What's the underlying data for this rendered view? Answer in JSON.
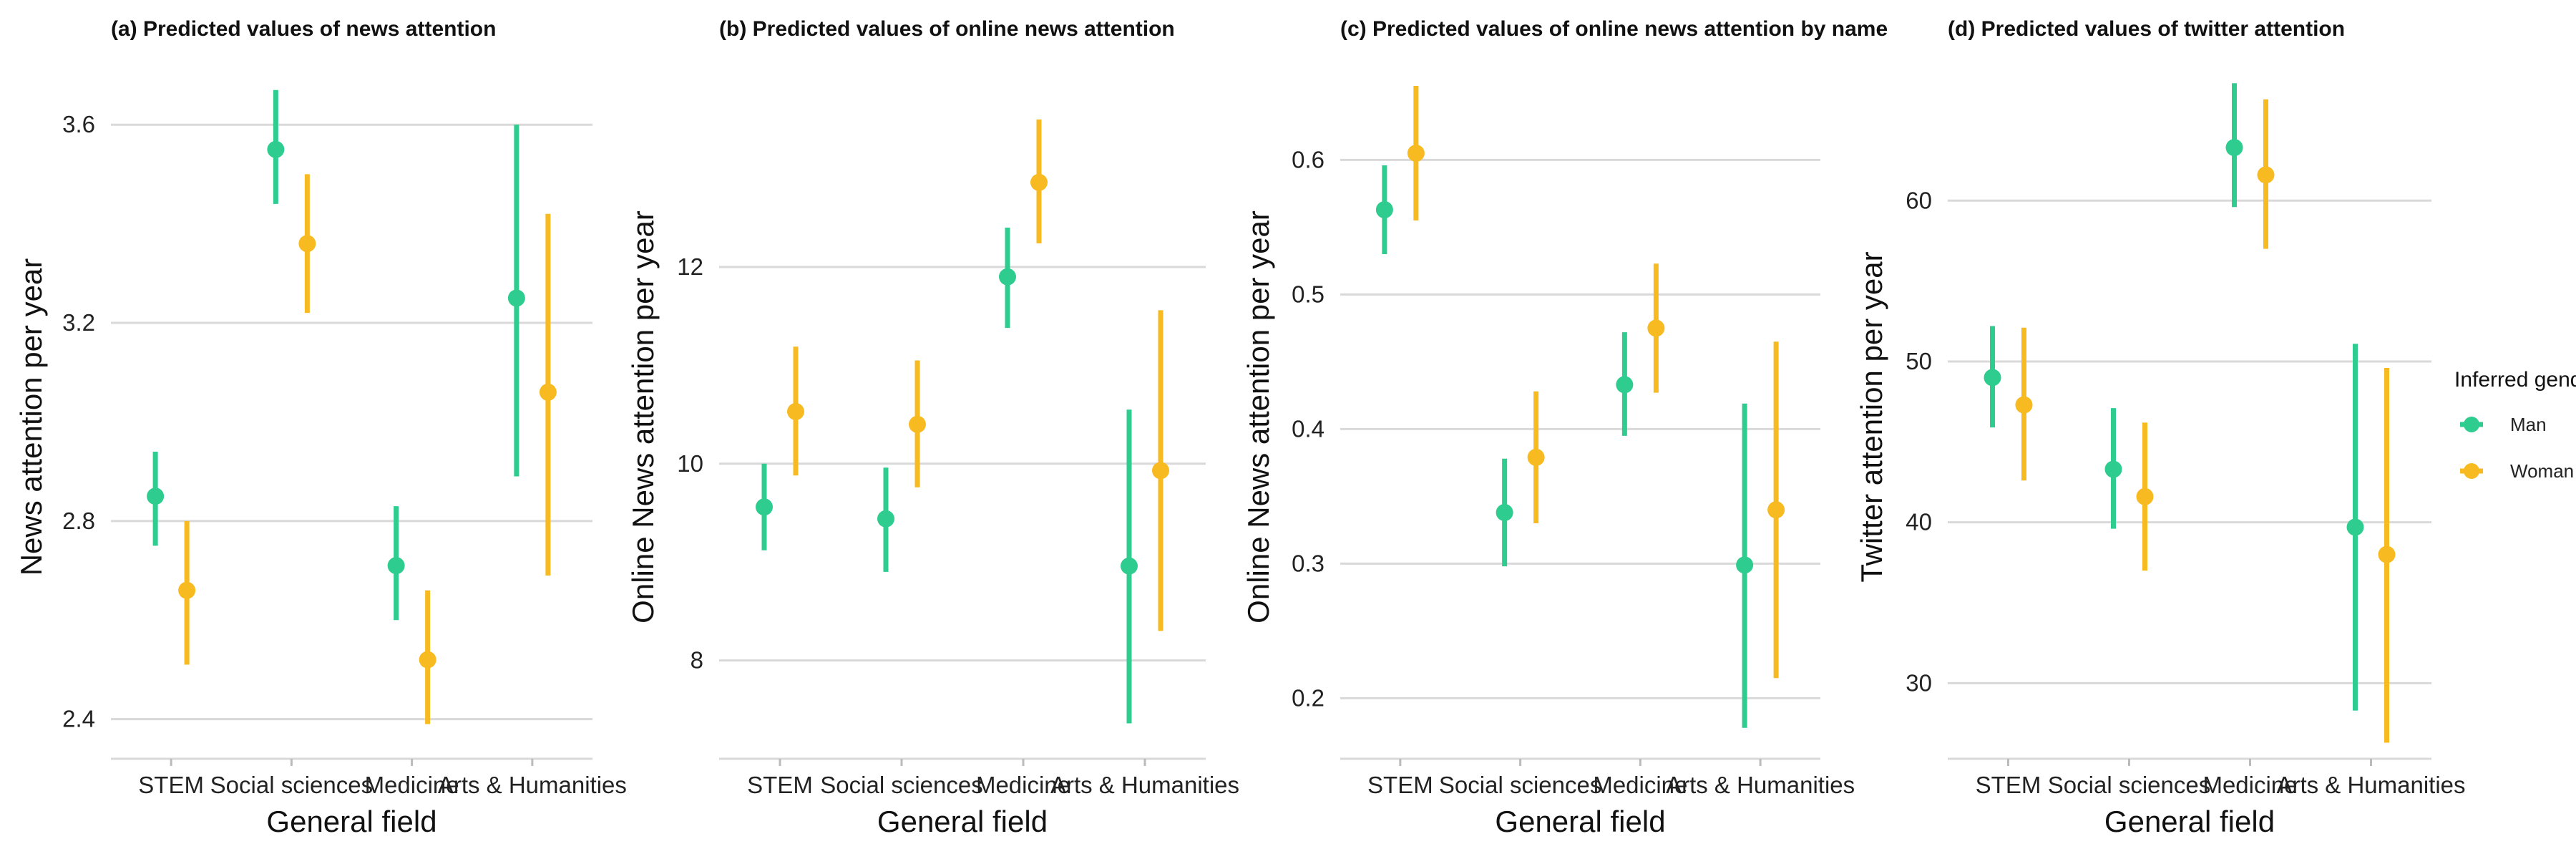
{
  "legend": {
    "title": "Inferred gender",
    "entries": [
      {
        "name": "Man",
        "color": "#2ECC8F"
      },
      {
        "name": "Woman",
        "color": "#F7BA21"
      }
    ],
    "position": "right"
  },
  "chart_data": [
    {
      "type": "point-range",
      "title": "(a) Predicted values of news attention",
      "xlabel": "General field",
      "ylabel": "News attention per year",
      "categories": [
        "STEM",
        "Social sciences",
        "Medicine",
        "Arts & Humanities"
      ],
      "ylim": [
        2.32,
        3.7
      ],
      "yticks": [
        2.4,
        2.8,
        3.2,
        3.6
      ],
      "ytick_labels": [
        "2.4",
        "2.8",
        "3.2",
        "3.6"
      ],
      "grid": true,
      "series": [
        {
          "name": "Man",
          "values": [
            2.85,
            3.55,
            2.71,
            3.25
          ],
          "lower": [
            2.75,
            3.44,
            2.6,
            2.89
          ],
          "upper": [
            2.94,
            3.67,
            2.83,
            3.6
          ]
        },
        {
          "name": "Woman",
          "values": [
            2.66,
            3.36,
            2.52,
            3.06
          ],
          "lower": [
            2.51,
            3.22,
            2.39,
            2.69
          ],
          "upper": [
            2.8,
            3.5,
            2.66,
            3.42
          ]
        }
      ]
    },
    {
      "type": "point-range",
      "title": "(b) Predicted values of online news attention",
      "xlabel": "General field",
      "ylabel": "Online News attention per year",
      "categories": [
        "STEM",
        "Social sciences",
        "Medicine",
        "Arts & Humanities"
      ],
      "ylim": [
        7.0,
        13.95
      ],
      "yticks": [
        8,
        10,
        12
      ],
      "ytick_labels": [
        "8",
        "10",
        "12"
      ],
      "grid": true,
      "series": [
        {
          "name": "Man",
          "values": [
            9.56,
            9.44,
            11.9,
            8.96
          ],
          "lower": [
            9.12,
            8.9,
            11.38,
            7.36
          ],
          "upper": [
            10.0,
            9.96,
            12.4,
            10.55
          ]
        },
        {
          "name": "Woman",
          "values": [
            10.53,
            10.4,
            12.86,
            9.93
          ],
          "lower": [
            9.88,
            9.76,
            12.24,
            8.3
          ],
          "upper": [
            11.19,
            11.05,
            13.5,
            11.56
          ]
        }
      ]
    },
    {
      "type": "point-range",
      "title": "(c) Predicted values of online news attention by name",
      "xlabel": "General field",
      "ylabel": "Online News attention per year",
      "categories": [
        "STEM",
        "Social sciences",
        "Medicine",
        "Arts & Humanities"
      ],
      "ylim": [
        0.155,
        0.663
      ],
      "yticks": [
        0.2,
        0.3,
        0.4,
        0.5,
        0.6
      ],
      "ytick_labels": [
        "0.2",
        "0.3",
        "0.4",
        "0.5",
        "0.6"
      ],
      "grid": true,
      "series": [
        {
          "name": "Man",
          "values": [
            0.563,
            0.338,
            0.433,
            0.299
          ],
          "lower": [
            0.53,
            0.298,
            0.395,
            0.178
          ],
          "upper": [
            0.596,
            0.378,
            0.472,
            0.419
          ]
        },
        {
          "name": "Woman",
          "values": [
            0.605,
            0.379,
            0.475,
            0.34
          ],
          "lower": [
            0.555,
            0.33,
            0.427,
            0.215
          ],
          "upper": [
            0.655,
            0.428,
            0.523,
            0.465
          ]
        }
      ]
    },
    {
      "type": "point-range",
      "title": "(d) Predicted values of twitter attention",
      "xlabel": "General field",
      "ylabel": "Twitter attention per year",
      "categories": [
        "STEM",
        "Social sciences",
        "Medicine",
        "Arts & Humanities"
      ],
      "ylim": [
        25.3,
        67.8
      ],
      "yticks": [
        30,
        40,
        50,
        60
      ],
      "ytick_labels": [
        "30",
        "40",
        "50",
        "60"
      ],
      "grid": true,
      "series": [
        {
          "name": "Man",
          "values": [
            49.0,
            43.3,
            63.3,
            39.7
          ],
          "lower": [
            45.9,
            39.6,
            59.6,
            28.3
          ],
          "upper": [
            52.2,
            47.1,
            67.3,
            51.1
          ]
        },
        {
          "name": "Woman",
          "values": [
            47.3,
            41.6,
            61.6,
            38.0
          ],
          "lower": [
            42.6,
            37.0,
            57.0,
            26.3
          ],
          "upper": [
            52.1,
            46.2,
            66.3,
            49.6
          ]
        }
      ]
    }
  ]
}
